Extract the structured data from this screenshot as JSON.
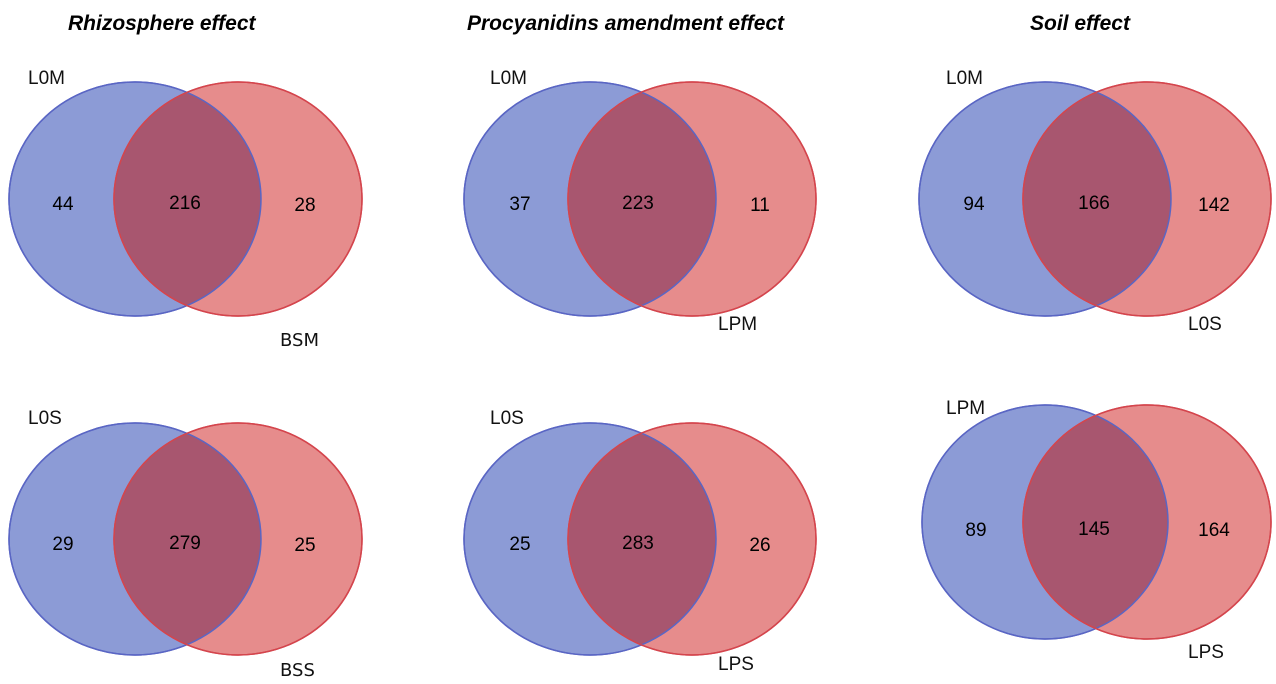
{
  "colors": {
    "left_fill": "#8c9bd6",
    "left_stroke": "#5a66c4",
    "right_fill": "#e68c8c",
    "right_stroke": "#d4454d",
    "overlap_fill": "#a8566f"
  },
  "titles": [
    "Rhizosphere effect",
    "Procyanidins amendment effect",
    "Soil effect"
  ],
  "venns": [
    {
      "left_label": "L0M",
      "right_label": "BSM",
      "left_only": "44",
      "overlap": "216",
      "right_only": "28"
    },
    {
      "left_label": "L0M",
      "right_label": "LPM",
      "left_only": "37",
      "overlap": "223",
      "right_only": "11"
    },
    {
      "left_label": "L0M",
      "right_label": "L0S",
      "left_only": "94",
      "overlap": "166",
      "right_only": "142"
    },
    {
      "left_label": "L0S",
      "right_label": "BSS",
      "left_only": "29",
      "overlap": "279",
      "right_only": "25"
    },
    {
      "left_label": "L0S",
      "right_label": "LPS",
      "left_only": "25",
      "overlap": "283",
      "right_only": "26"
    },
    {
      "left_label": "LPM",
      "right_label": "LPS",
      "left_only": "89",
      "overlap": "145",
      "right_only": "164"
    }
  ]
}
